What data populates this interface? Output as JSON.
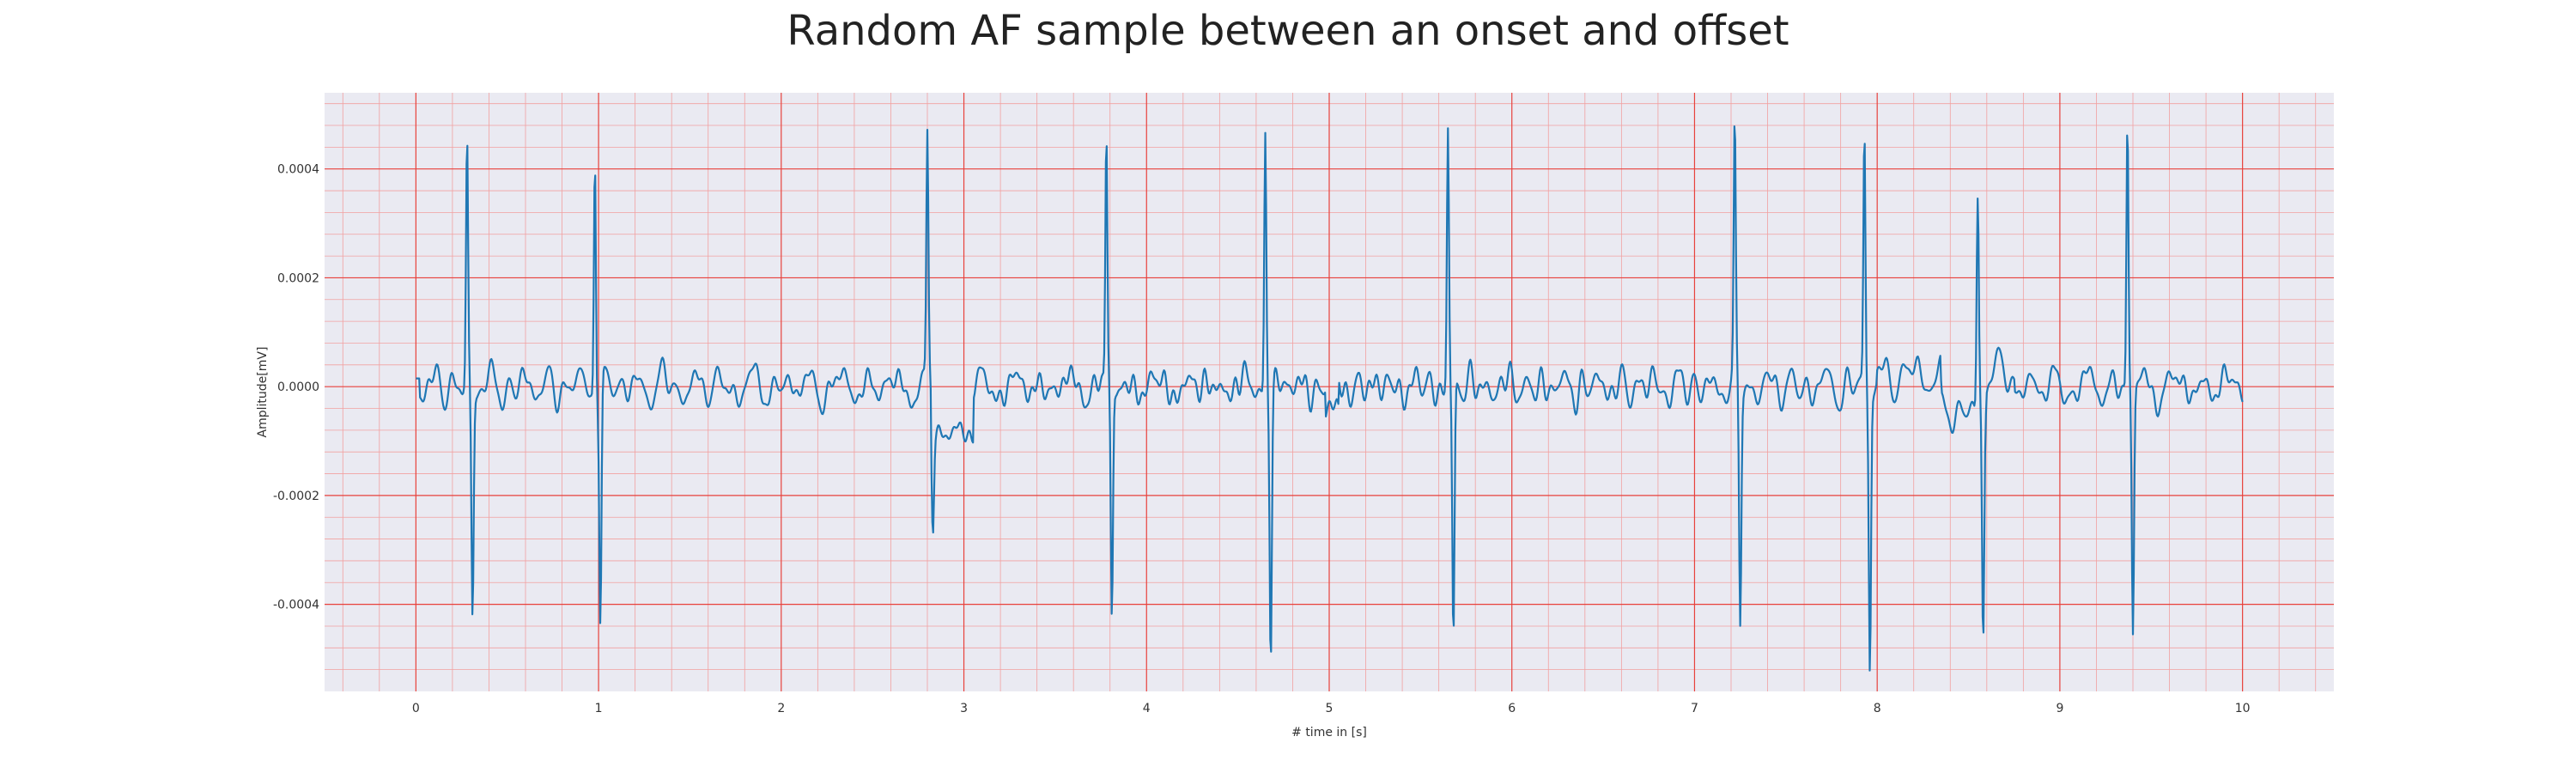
{
  "chart_data": {
    "type": "line",
    "title": "Random AF sample between an onset and offset",
    "xlabel": "# time in [s]",
    "ylabel": "Amplitude[mV]",
    "xlim": [
      -0.5,
      10.5
    ],
    "ylim": [
      -0.00056,
      0.00054
    ],
    "x_ticks": [
      0,
      1,
      2,
      3,
      4,
      5,
      6,
      7,
      8,
      9,
      10
    ],
    "x_tick_labels": [
      "0",
      "1",
      "2",
      "3",
      "4",
      "5",
      "6",
      "7",
      "8",
      "9",
      "10"
    ],
    "y_ticks": [
      -0.0004,
      -0.0002,
      0.0,
      0.0002,
      0.0004
    ],
    "y_tick_labels": [
      "-0.0004",
      "-0.0002",
      "0.0000",
      "0.0002",
      "0.0004"
    ],
    "grid": true,
    "major_grid_color": "#e8413c",
    "minor_grid_color": "#f2a0a0",
    "background_color": "#eaeaf2",
    "series": [
      {
        "color": "#1f77b4",
        "peaks": [
          {
            "t": 0.28,
            "up": 0.00044,
            "down": -0.00041
          },
          {
            "t": 0.98,
            "up": 0.000455,
            "down": -0.00044
          },
          {
            "t": 2.8,
            "up": 0.000435,
            "down": -0.00018
          },
          {
            "t": 3.78,
            "up": 0.000465,
            "down": -0.00044
          },
          {
            "t": 4.65,
            "up": 0.000465,
            "down": -0.00048
          },
          {
            "t": 5.65,
            "up": 0.00046,
            "down": -0.000465
          },
          {
            "t": 7.22,
            "up": 0.00045,
            "down": -0.000425
          },
          {
            "t": 7.93,
            "up": 0.000465,
            "down": -0.00051
          },
          {
            "t": 8.55,
            "up": 0.0004,
            "down": -0.000435
          },
          {
            "t": 9.37,
            "up": 0.00049,
            "down": -0.000445
          }
        ],
        "range": [
          0,
          10
        ],
        "baseline_segments": [
          {
            "from": 2.82,
            "to": 3.05,
            "offset": -8e-05
          },
          {
            "from": 4.98,
            "to": 5.05,
            "offset": -5e-05
          },
          {
            "from": 8.0,
            "to": 8.35,
            "offset": 2e-05
          },
          {
            "from": 8.35,
            "to": 8.55,
            "offset": -5e-05
          },
          {
            "from": 8.6,
            "to": 8.75,
            "offset": 2e-05
          }
        ]
      }
    ]
  }
}
